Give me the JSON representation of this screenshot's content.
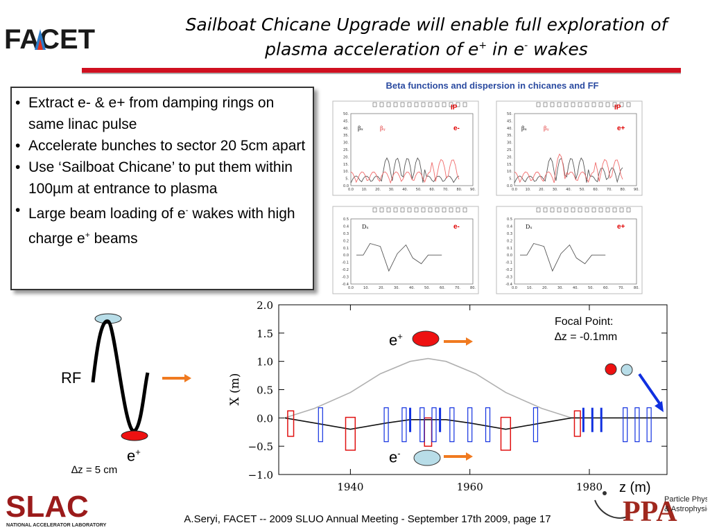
{
  "header": {
    "logo_text": "FACET",
    "title_line1": "Sailboat Chicane Upgrade will enable full exploration of",
    "title_line2_pre": "plasma acceleration of e",
    "title_line2_sup1": "+",
    "title_line2_mid": " in e",
    "title_line2_sup2": "-",
    "title_line2_post": " wakes"
  },
  "bullets": {
    "bullet_char": "•",
    "items": [
      {
        "text": "Extract e- & e+ from damping rings on same linac pulse"
      },
      {
        "text": "Accelerate bunches to sector 20 5cm apart"
      },
      {
        "text": "Use ‘Sailboat Chicane’ to put them within 100µm at entrance to plasma"
      },
      {
        "pre": "Large beam loading of e",
        "sup1": "-",
        "mid": " wakes with high charge e",
        "sup2": "+",
        "post": " beams"
      }
    ]
  },
  "beta_figure": {
    "title": "Beta functions and dispersion in chicanes and FF",
    "panels": [
      {
        "ip": "IP",
        "beam": "e-",
        "kind": "beta",
        "label_bx": "βₓ",
        "label_by": "βᵧ"
      },
      {
        "ip": "IP",
        "beam": "e+",
        "kind": "beta",
        "label_bx": "βₓ",
        "label_by": "βᵧ"
      },
      {
        "beam": "e-",
        "kind": "dispersion",
        "label_d": "Dₓ"
      },
      {
        "beam": "e+",
        "kind": "dispersion",
        "label_d": "Dₓ"
      }
    ],
    "beta_ticks_y": [
      "50.",
      "45.",
      "40.",
      "35.",
      "30.",
      "25.",
      "20.",
      "15.",
      "10.",
      "5.",
      "0.0"
    ],
    "beta_ticks_x": [
      "0.0",
      "10.",
      "20.",
      "30.",
      "40.",
      "50.",
      "60.",
      "70.",
      "80.",
      "90."
    ],
    "disp_ticks_y": [
      "0.5",
      "0.4",
      "0.3",
      "0.2",
      "0.1",
      "0.0",
      "-0.1",
      "-0.2",
      "-0.3",
      "-0.4"
    ],
    "disp_ticks_x": [
      "0.0",
      "10.",
      "20.",
      "30.",
      "40.",
      "50.",
      "60.",
      "70.",
      "80."
    ]
  },
  "rf_diagram": {
    "rf_label": "RF",
    "eplus_text": "e",
    "eplus_sup": "+",
    "dz_text": "∆z = 5 cm",
    "colors": {
      "red_bunch": "#ee1111",
      "blue_bunch": "#b8dde8",
      "arrow": "#f07a20"
    }
  },
  "chart_data": {
    "type": "line",
    "ylabel": "X (m)",
    "xlabel": "z (m)",
    "ylim": [
      -1.0,
      2.0
    ],
    "xlim": [
      1928,
      1993
    ],
    "yticks": [
      "2.0",
      "1.5",
      "1.0",
      "0.5",
      "0.0",
      "−0.5",
      "−1.0"
    ],
    "xticks": [
      "1940",
      "1960",
      "1980"
    ],
    "series": [
      {
        "color": "#b0b0b0",
        "x": [
          1929,
          1934,
          1940,
          1945,
          1950,
          1953,
          1956,
          1961,
          1966,
          1972,
          1977
        ],
        "y": [
          0.0,
          0.17,
          0.45,
          0.78,
          1.0,
          1.05,
          1.0,
          0.78,
          0.45,
          0.17,
          0.0
        ]
      },
      {
        "color": "#111111",
        "x": [
          1929,
          1934,
          1940,
          1946,
          1950,
          1953,
          1956,
          1960,
          1966,
          1972,
          1977,
          1993
        ],
        "y": [
          0.0,
          -0.09,
          -0.2,
          -0.09,
          -0.03,
          -0.03,
          -0.03,
          -0.09,
          -0.2,
          -0.09,
          0.0,
          0.0
        ]
      }
    ],
    "beam_e_plus": "e",
    "beam_e_plus_sup": "+",
    "beam_e_minus": "e",
    "beam_e_minus_sup": "-",
    "focal_line1": "Focal Point:",
    "focal_line2": "∆z = -0.1mm"
  },
  "footer": {
    "text": "A.Seryi, FACET  -- 2009 SLUO Annual Meeting - September 17th 2009, page 17",
    "slac_text": "SLAC",
    "slac_sub": "NATIONAL ACCELERATOR LABORATORY",
    "ppa_text": "PPA",
    "ppa_sub1": "Particle Physics",
    "ppa_sub2": "& Astrophysics"
  }
}
